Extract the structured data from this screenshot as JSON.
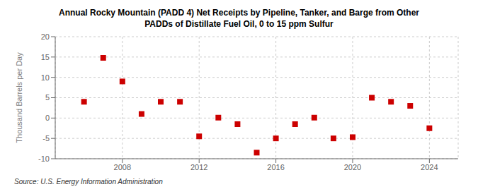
{
  "chart_data": {
    "type": "scatter",
    "title": "Annual Rocky Mountain (PADD 4) Net Receipts by Pipeline, Tanker, and Barge from Other\nPADDs of Distillate Fuel Oil, 0 to 15 ppm Sulfur",
    "y_label": "Thousand Barrels per Day",
    "annotations": [
      "Source: U.S. Energy Information Administration"
    ],
    "x": [
      2006,
      2007,
      2008,
      2009,
      2010,
      2011,
      2012,
      2013,
      2014,
      2015,
      2016,
      2017,
      2018,
      2019,
      2020,
      2021,
      2022,
      2023,
      2024
    ],
    "values": [
      4.0,
      14.8,
      9.0,
      1.0,
      4.0,
      4.0,
      -4.5,
      0.1,
      -1.5,
      -8.5,
      -5.0,
      -1.5,
      0.1,
      -5.0,
      -4.7,
      5.0,
      4.0,
      3.0,
      -2.5
    ],
    "color": "#cc0000",
    "marker": "square",
    "xlim": [
      2004.5,
      2025.5
    ],
    "xticks": [
      2008,
      2012,
      2016,
      2020,
      2024
    ],
    "ylim": [
      -10,
      20
    ],
    "yticks": [
      -10,
      -5,
      0,
      5,
      10,
      15,
      20
    ],
    "grid": true
  }
}
